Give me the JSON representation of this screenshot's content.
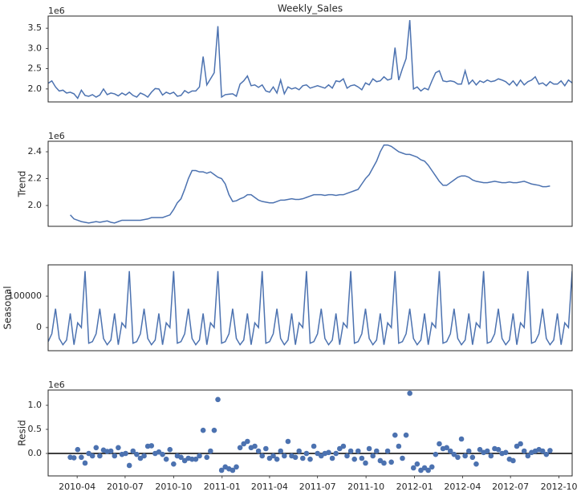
{
  "chart_data": [
    {
      "type": "line",
      "title": "Weekly_Sales",
      "offset_label": "1e6",
      "color": "#4c72b0",
      "values": [
        2.14,
        2.2,
        2.05,
        1.95,
        1.97,
        1.9,
        1.92,
        1.88,
        1.77,
        1.97,
        1.84,
        1.82,
        1.86,
        1.8,
        1.85,
        2.0,
        1.86,
        1.9,
        1.88,
        1.83,
        1.9,
        1.85,
        1.92,
        1.84,
        1.8,
        1.9,
        1.86,
        1.8,
        1.92,
        2.01,
        2.0,
        1.85,
        1.92,
        1.88,
        1.92,
        1.82,
        1.84,
        1.96,
        1.9,
        1.95,
        1.95,
        2.05,
        2.8,
        2.1,
        2.25,
        2.4,
        3.55,
        1.8,
        1.86,
        1.87,
        1.88,
        1.82,
        2.12,
        2.2,
        2.32,
        2.08,
        2.1,
        2.04,
        2.1,
        1.95,
        1.92,
        2.05,
        1.9,
        2.22,
        1.88,
        2.05,
        2.0,
        2.03,
        1.98,
        2.08,
        2.1,
        2.02,
        2.05,
        2.08,
        2.05,
        2.02,
        2.1,
        2.02,
        2.2,
        2.18,
        2.25,
        2.02,
        2.08,
        2.1,
        2.05,
        1.98,
        2.15,
        2.1,
        2.25,
        2.18,
        2.2,
        2.3,
        2.22,
        2.25,
        3.02,
        2.22,
        2.5,
        2.75,
        3.7,
        2.0,
        2.05,
        1.95,
        2.02,
        1.98,
        2.2,
        2.4,
        2.45,
        2.2,
        2.18,
        2.2,
        2.18,
        2.12,
        2.12,
        2.45,
        2.12,
        2.22,
        2.1,
        2.2,
        2.16,
        2.22,
        2.18,
        2.2,
        2.25,
        2.22,
        2.18,
        2.1,
        2.2,
        2.08,
        2.22,
        2.1,
        2.18,
        2.22,
        2.3,
        2.12,
        2.15,
        2.08,
        2.18,
        2.12,
        2.12,
        2.2,
        2.08,
        2.22,
        2.15
      ],
      "xlim": [
        0,
        142
      ],
      "ylim": [
        1.68,
        3.8
      ],
      "yticks": [
        {
          "value": 2,
          "label": "2.0"
        },
        {
          "value": 2.5,
          "label": "2.5"
        },
        {
          "value": 3,
          "label": "3.0"
        },
        {
          "value": 3.5,
          "label": "3.5"
        }
      ]
    },
    {
      "type": "line",
      "ylabel": "Trend",
      "offset_label": "1e6",
      "color": "#4c72b0",
      "values": [
        null,
        null,
        null,
        null,
        null,
        null,
        1.93,
        1.9,
        1.89,
        1.88,
        1.875,
        1.87,
        1.875,
        1.88,
        1.875,
        1.88,
        1.885,
        1.875,
        1.87,
        1.88,
        1.89,
        1.89,
        1.89,
        1.89,
        1.89,
        1.89,
        1.895,
        1.9,
        1.91,
        1.91,
        1.91,
        1.91,
        1.92,
        1.93,
        1.97,
        2.02,
        2.05,
        2.12,
        2.2,
        2.26,
        2.26,
        2.25,
        2.25,
        2.24,
        2.25,
        2.23,
        2.21,
        2.2,
        2.16,
        2.08,
        2.03,
        2.035,
        2.05,
        2.06,
        2.08,
        2.08,
        2.06,
        2.04,
        2.03,
        2.025,
        2.02,
        2.02,
        2.03,
        2.04,
        2.04,
        2.045,
        2.05,
        2.045,
        2.045,
        2.05,
        2.06,
        2.07,
        2.08,
        2.08,
        2.08,
        2.075,
        2.08,
        2.08,
        2.075,
        2.08,
        2.08,
        2.09,
        2.1,
        2.11,
        2.12,
        2.16,
        2.2,
        2.23,
        2.28,
        2.33,
        2.4,
        2.45,
        2.45,
        2.44,
        2.42,
        2.4,
        2.39,
        2.38,
        2.38,
        2.37,
        2.36,
        2.34,
        2.33,
        2.3,
        2.26,
        2.22,
        2.18,
        2.15,
        2.15,
        2.17,
        2.19,
        2.21,
        2.22,
        2.22,
        2.21,
        2.19,
        2.18,
        2.175,
        2.17,
        2.17,
        2.175,
        2.18,
        2.175,
        2.17,
        2.17,
        2.175,
        2.17,
        2.17,
        2.175,
        2.18,
        2.17,
        2.16,
        2.155,
        2.15,
        2.14,
        2.14,
        2.145,
        null,
        null,
        null,
        null,
        null,
        null
      ],
      "xlim": [
        0,
        142
      ],
      "ylim": [
        1.845,
        2.478
      ],
      "yticks": [
        {
          "value": 2,
          "label": "2.0"
        },
        {
          "value": 2.2,
          "label": "2.2"
        },
        {
          "value": 2.4,
          "label": "2.4"
        }
      ]
    },
    {
      "type": "line",
      "ylabel": "Seasonal",
      "color": "#4c72b0",
      "values": [
        -45000,
        -20000,
        60000,
        -35000,
        -55000,
        -40000,
        45000,
        -55000,
        15000,
        0,
        180000,
        -50000,
        -45000,
        -20000,
        60000,
        -35000,
        -55000,
        -40000,
        45000,
        -55000,
        15000,
        0,
        180000,
        -50000,
        -45000,
        -20000,
        60000,
        -35000,
        -55000,
        -40000,
        45000,
        -55000,
        15000,
        0,
        180000,
        -50000,
        -45000,
        -20000,
        60000,
        -35000,
        -55000,
        -40000,
        45000,
        -55000,
        15000,
        0,
        180000,
        -50000,
        -45000,
        -20000,
        60000,
        -35000,
        -55000,
        -40000,
        45000,
        -55000,
        15000,
        0,
        180000,
        -50000,
        -45000,
        -20000,
        60000,
        -35000,
        -55000,
        -40000,
        45000,
        -55000,
        15000,
        0,
        180000,
        -50000,
        -45000,
        -20000,
        60000,
        -35000,
        -55000,
        -40000,
        45000,
        -55000,
        15000,
        0,
        180000,
        -50000,
        -45000,
        -20000,
        60000,
        -35000,
        -55000,
        -40000,
        45000,
        -55000,
        15000,
        0,
        180000,
        -50000,
        -45000,
        -20000,
        60000,
        -35000,
        -55000,
        -40000,
        45000,
        -55000,
        15000,
        0,
        180000,
        -50000,
        -45000,
        -20000,
        60000,
        -35000,
        -55000,
        -40000,
        45000,
        -55000,
        15000,
        0,
        180000,
        -50000,
        -45000,
        -20000,
        60000,
        -35000,
        -55000,
        -40000,
        45000,
        -55000,
        15000,
        0,
        180000,
        -50000,
        -45000,
        -20000,
        60000,
        -35000,
        -55000,
        -40000,
        45000,
        -55000,
        15000,
        0,
        180000
      ],
      "xlim": [
        0,
        142
      ],
      "ylim": [
        -74000,
        200000
      ],
      "yticks": [
        0,
        100000
      ]
    },
    {
      "type": "scatter",
      "ylabel": "Resid",
      "offset_label": "1e6",
      "color": "#4c72b0",
      "zero_line": true,
      "values": [
        null,
        null,
        null,
        null,
        null,
        null,
        -0.08,
        -0.09,
        0.08,
        -0.08,
        -0.2,
        0.0,
        -0.05,
        0.12,
        -0.05,
        0.07,
        0.04,
        0.05,
        -0.05,
        0.12,
        -0.02,
        0.0,
        -0.25,
        0.05,
        -0.02,
        -0.1,
        -0.05,
        0.15,
        0.16,
        0.0,
        0.03,
        -0.02,
        -0.12,
        0.08,
        -0.22,
        -0.05,
        -0.08,
        -0.15,
        -0.1,
        -0.12,
        -0.12,
        -0.05,
        0.48,
        -0.08,
        0.05,
        0.48,
        1.12,
        -0.35,
        -0.28,
        -0.32,
        -0.35,
        -0.28,
        0.12,
        0.2,
        0.25,
        0.12,
        0.15,
        0.05,
        -0.05,
        0.1,
        -0.1,
        -0.05,
        -0.12,
        0.05,
        -0.05,
        0.25,
        -0.05,
        -0.08,
        0.05,
        -0.1,
        0.0,
        -0.12,
        0.15,
        0.0,
        -0.05,
        0.0,
        0.02,
        -0.1,
        0.0,
        0.1,
        0.15,
        -0.05,
        0.05,
        -0.12,
        0.05,
        -0.1,
        -0.2,
        0.1,
        -0.05,
        0.05,
        -0.15,
        -0.2,
        0.05,
        -0.18,
        0.38,
        0.15,
        -0.1,
        0.38,
        1.25,
        -0.3,
        -0.22,
        -0.35,
        -0.3,
        -0.35,
        -0.28,
        -0.02,
        0.2,
        0.1,
        0.12,
        0.05,
        -0.02,
        -0.08,
        0.3,
        -0.05,
        0.05,
        -0.08,
        -0.22,
        0.08,
        0.02,
        0.05,
        -0.05,
        0.1,
        0.08,
        0.0,
        0.02,
        -0.12,
        -0.15,
        0.15,
        0.2,
        0.05,
        -0.05,
        0.02,
        0.05,
        0.08,
        0.05,
        -0.02,
        0.06,
        null,
        null,
        null,
        null,
        null,
        null
      ],
      "xlim": [
        0,
        142
      ],
      "ylim": [
        -0.467,
        1.317
      ],
      "yticks": [
        {
          "value": 0,
          "label": "0.0"
        },
        {
          "value": 0.5,
          "label": "0.5"
        },
        {
          "value": 1,
          "label": "1.0"
        }
      ],
      "xticks": [
        {
          "value": 7.86,
          "label": "2010-04"
        },
        {
          "value": 20.86,
          "label": "2010-07"
        },
        {
          "value": 34,
          "label": "2010-10"
        },
        {
          "value": 47.14,
          "label": "2011-01"
        },
        {
          "value": 60,
          "label": "2011-04"
        },
        {
          "value": 73,
          "label": "2011-07"
        },
        {
          "value": 86.14,
          "label": "2011-10"
        },
        {
          "value": 99.29,
          "label": "2012-01"
        },
        {
          "value": 112.29,
          "label": "2012-04"
        },
        {
          "value": 125.29,
          "label": "2012-07"
        },
        {
          "value": 138.43,
          "label": "2012-10"
        }
      ]
    }
  ]
}
